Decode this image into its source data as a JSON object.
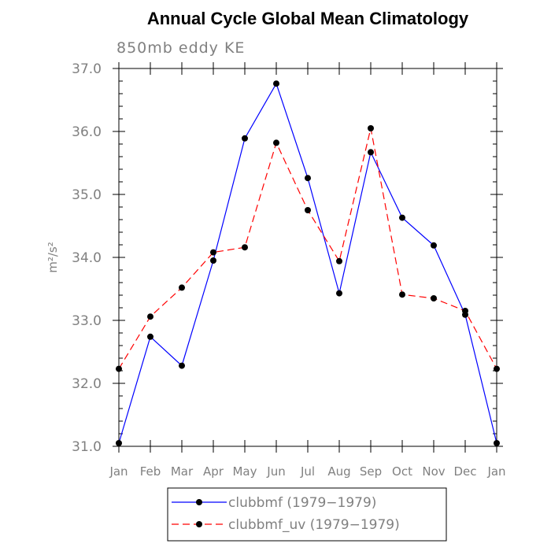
{
  "chart_data": {
    "type": "line",
    "title": "Annual Cycle Global Mean Climatology",
    "subtitle": "850mb eddy KE",
    "ylabel": "m²/s²",
    "xlabel": "",
    "categories": [
      "Jan",
      "Feb",
      "Mar",
      "Apr",
      "May",
      "Jun",
      "Jul",
      "Aug",
      "Sep",
      "Oct",
      "Nov",
      "Dec",
      "Jan"
    ],
    "ylim": [
      31.0,
      37.0
    ],
    "yticks": [
      "31.0",
      "32.0",
      "33.0",
      "34.0",
      "35.0",
      "36.0",
      "37.0"
    ],
    "grid": false,
    "legend_position": "bottom",
    "series": [
      {
        "name": "clubbmf (1979−1979)",
        "color": "#0000ff",
        "dash": "solid",
        "values": [
          31.05,
          32.74,
          32.28,
          33.95,
          35.89,
          36.76,
          35.26,
          33.43,
          35.67,
          34.63,
          34.19,
          33.09,
          31.05
        ]
      },
      {
        "name": "clubbmf_uv (1979−1979)",
        "color": "#ff0000",
        "dash": "dashed",
        "values": [
          32.23,
          33.06,
          33.52,
          34.08,
          34.16,
          35.82,
          34.75,
          33.94,
          36.05,
          33.41,
          33.35,
          33.15,
          32.23
        ]
      }
    ]
  }
}
